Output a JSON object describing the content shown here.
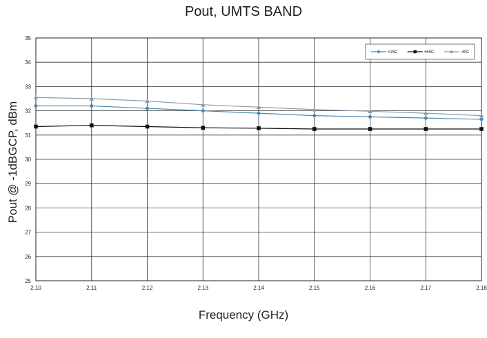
{
  "chart_data": {
    "type": "line",
    "title": "Pout, UMTS BAND",
    "xlabel": "Frequency (GHz)",
    "ylabel": "Pout @ -1dBGCP, dBm",
    "x": [
      2.1,
      2.11,
      2.12,
      2.13,
      2.14,
      2.15,
      2.16,
      2.17,
      2.18
    ],
    "x_tick_labels": [
      "2.10",
      "2.11",
      "2.12",
      "2.13",
      "2.14",
      "2.15",
      "2.16",
      "2.17",
      "2.18"
    ],
    "y_tick_labels": [
      "25",
      "26",
      "27",
      "28",
      "29",
      "30",
      "31",
      "32",
      "33",
      "34",
      "35"
    ],
    "xlim": [
      2.1,
      2.18
    ],
    "ylim": [
      25,
      35
    ],
    "grid": true,
    "legend_position": "top-right",
    "series": [
      {
        "name": "+25C",
        "marker": "diamond",
        "color": "#4a88b0",
        "values": [
          32.2,
          32.2,
          32.1,
          32.0,
          31.9,
          31.8,
          31.75,
          31.7,
          31.65
        ]
      },
      {
        "name": "+85C",
        "marker": "square",
        "color": "#111111",
        "values": [
          31.35,
          31.4,
          31.35,
          31.3,
          31.28,
          31.25,
          31.25,
          31.25,
          31.25
        ]
      },
      {
        "name": "-40C",
        "marker": "triangle",
        "color": "#8a9aa8",
        "values": [
          32.55,
          32.5,
          32.4,
          32.25,
          32.15,
          32.05,
          31.98,
          31.9,
          31.8
        ]
      }
    ]
  }
}
